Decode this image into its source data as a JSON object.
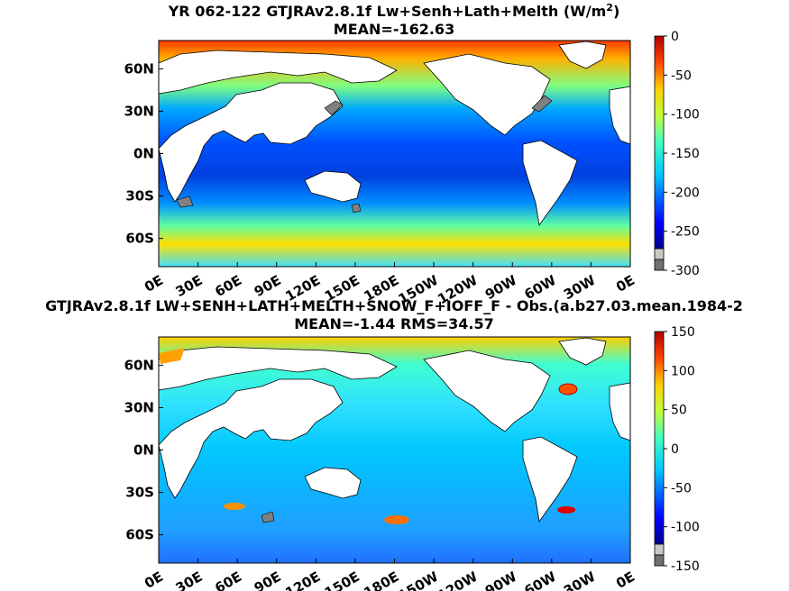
{
  "chart_data": [
    {
      "type": "heatmap",
      "title_line1": "YR 062-122 GTJRAv2.8.1f Lw+Senh+Lath+Melth (W/m",
      "title_sup": "2",
      "title_close": ")",
      "title_line2": "MEAN=-162.63",
      "x_ticks": [
        "0E",
        "30E",
        "60E",
        "90E",
        "120E",
        "150E",
        "180E",
        "150W",
        "120W",
        "90W",
        "60W",
        "30W",
        "0E"
      ],
      "y_ticks": [
        "60N",
        "30N",
        "0N",
        "30S",
        "60S"
      ],
      "colorbar_ticks": [
        "0",
        "-50",
        "-100",
        "-150",
        "-200",
        "-250",
        "-300"
      ],
      "colorbar_range": [
        -300,
        0
      ],
      "mean": -162.63
    },
    {
      "type": "heatmap",
      "title_line1": "GTJRAv2.8.1f LW+SENH+LATH+MELTH+SNOW_F+IOFF_F - Obs.(a.b27.03.mean.1984-2",
      "title_line2": "MEAN=-1.44 RMS=34.57",
      "x_ticks": [
        "0E",
        "30E",
        "60E",
        "90E",
        "120E",
        "150E",
        "180E",
        "150W",
        "120W",
        "90W",
        "60W",
        "30W",
        "0E"
      ],
      "y_ticks": [
        "60N",
        "30N",
        "0N",
        "30S",
        "60S"
      ],
      "colorbar_ticks": [
        "150",
        "100",
        "50",
        "0",
        "-50",
        "-100",
        "-150"
      ],
      "colorbar_range": [
        -150,
        150
      ],
      "mean": -1.44,
      "rms": 34.57
    }
  ],
  "colors": {
    "land": "#ffffff",
    "missing": "#7a7a7a",
    "jet": [
      "#00008f",
      "#0000ff",
      "#0070ff",
      "#00d0ff",
      "#40ffc0",
      "#a0ff60",
      "#ffff00",
      "#ffa000",
      "#ff3000",
      "#b00000"
    ]
  }
}
